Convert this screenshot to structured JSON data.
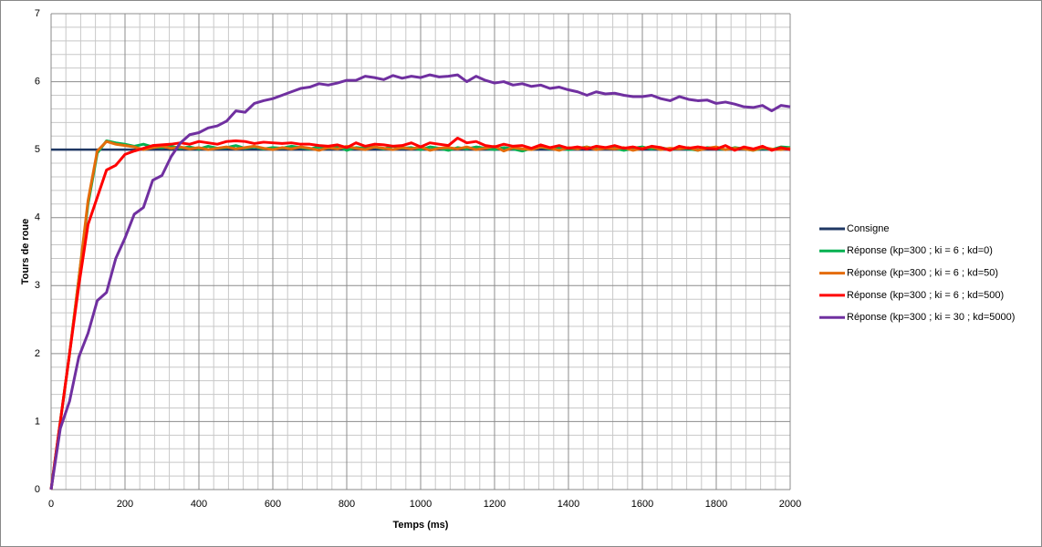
{
  "chart_data": {
    "type": "line",
    "x_label": "Temps (ms)",
    "y_label": "Tours de roue",
    "x": [
      0,
      25,
      50,
      75,
      100,
      125,
      150,
      175,
      200,
      225,
      250,
      275,
      300,
      325,
      350,
      375,
      400,
      425,
      450,
      475,
      500,
      525,
      550,
      575,
      600,
      625,
      650,
      675,
      700,
      725,
      750,
      775,
      800,
      825,
      850,
      875,
      900,
      925,
      950,
      975,
      1000,
      1025,
      1050,
      1075,
      1100,
      1125,
      1150,
      1175,
      1200,
      1225,
      1250,
      1275,
      1300,
      1325,
      1350,
      1375,
      1400,
      1425,
      1450,
      1475,
      1500,
      1525,
      1550,
      1575,
      1600,
      1625,
      1650,
      1675,
      1700,
      1725,
      1750,
      1775,
      1800,
      1825,
      1850,
      1875,
      1900,
      1925,
      1950,
      1975,
      2000
    ],
    "series": [
      {
        "name": "Consigne",
        "color": "#1f3864",
        "values": [
          5,
          5,
          5,
          5,
          5,
          5,
          5,
          5,
          5,
          5,
          5,
          5,
          5,
          5,
          5,
          5,
          5,
          5,
          5,
          5,
          5,
          5,
          5,
          5,
          5,
          5,
          5,
          5,
          5,
          5,
          5,
          5,
          5,
          5,
          5,
          5,
          5,
          5,
          5,
          5,
          5,
          5,
          5,
          5,
          5,
          5,
          5,
          5,
          5,
          5,
          5,
          5,
          5,
          5,
          5,
          5,
          5,
          5,
          5,
          5,
          5,
          5,
          5,
          5,
          5,
          5,
          5,
          5,
          5,
          5,
          5,
          5,
          5,
          5,
          5,
          5,
          5,
          5,
          5,
          5,
          5
        ]
      },
      {
        "name": "Réponse (kp=300 ; ki = 6 ; kd=0)",
        "color": "#00b050",
        "values": [
          0,
          1.0,
          2.0,
          3.1,
          4.2,
          4.95,
          5.13,
          5.1,
          5.08,
          5.05,
          5.08,
          5.04,
          5.03,
          5.05,
          5.02,
          5.04,
          5.01,
          5.05,
          5.02,
          5.03,
          5.06,
          5.02,
          5.04,
          5.01,
          5.03,
          5.02,
          5.05,
          5.03,
          5.01,
          5.04,
          5.02,
          5.05,
          4.99,
          5.03,
          5.02,
          5.04,
          5.01,
          5.05,
          5.02,
          5.03,
          5.0,
          5.04,
          5.02,
          4.99,
          5.03,
          5.01,
          5.04,
          5.02,
          5.0,
          5.03,
          5.01,
          4.98,
          5.02,
          5.04,
          5.01,
          5.03,
          5.0,
          5.02,
          5.04,
          5.01,
          5.03,
          5.02,
          4.99,
          5.02,
          5.04,
          5.01,
          5.03,
          5.0,
          5.02,
          5.01,
          4.99,
          5.03,
          5.02,
          5.0,
          5.03,
          5.01,
          4.99,
          5.02,
          5.0,
          5.04,
          5.03
        ]
      },
      {
        "name": "Réponse (kp=300 ; ki = 6 ; kd=50)",
        "color": "#e46c0a",
        "values": [
          0,
          1.0,
          2.0,
          3.1,
          4.25,
          4.98,
          5.12,
          5.08,
          5.06,
          5.04,
          5.0,
          5.03,
          5.05,
          5.02,
          5.04,
          5.01,
          5.03,
          5.0,
          5.02,
          5.04,
          5.01,
          5.03,
          5.05,
          5.02,
          5.0,
          5.03,
          5.01,
          5.04,
          5.02,
          4.99,
          5.03,
          5.01,
          5.05,
          5.02,
          5.0,
          5.04,
          5.02,
          5.0,
          5.03,
          5.01,
          5.04,
          4.99,
          5.02,
          5.03,
          5.01,
          5.04,
          5.0,
          5.02,
          5.05,
          4.98,
          5.03,
          5.01,
          5.0,
          5.04,
          5.02,
          4.99,
          5.03,
          5.01,
          5.04,
          5.0,
          5.02,
          5.01,
          5.03,
          4.99,
          5.02,
          5.04,
          5.0,
          5.02,
          5.01,
          5.03,
          4.99,
          5.02,
          5.04,
          5.0,
          5.02,
          5.01,
          4.99,
          5.03,
          5.01,
          5.0,
          5.02
        ]
      },
      {
        "name": "Réponse (kp=300 ; ki = 6 ; kd=500)",
        "color": "#ff0000",
        "values": [
          0,
          1.0,
          2.0,
          3.0,
          3.9,
          4.3,
          4.7,
          4.77,
          4.93,
          4.98,
          5.02,
          5.06,
          5.07,
          5.08,
          5.1,
          5.08,
          5.12,
          5.1,
          5.08,
          5.12,
          5.13,
          5.12,
          5.09,
          5.11,
          5.1,
          5.09,
          5.1,
          5.08,
          5.08,
          5.06,
          5.05,
          5.07,
          5.03,
          5.1,
          5.05,
          5.08,
          5.07,
          5.05,
          5.06,
          5.1,
          5.04,
          5.1,
          5.08,
          5.06,
          5.17,
          5.1,
          5.12,
          5.06,
          5.04,
          5.08,
          5.05,
          5.06,
          5.02,
          5.07,
          5.03,
          5.06,
          5.02,
          5.04,
          5.01,
          5.05,
          5.03,
          5.06,
          5.02,
          5.04,
          5.01,
          5.05,
          5.03,
          4.99,
          5.05,
          5.02,
          5.04,
          5.02,
          5.01,
          5.06,
          4.99,
          5.04,
          5.01,
          5.05,
          4.99,
          5.03,
          5.0
        ]
      },
      {
        "name": "Réponse (kp=300 ; ki = 30 ; kd=5000)",
        "color": "#7030a0",
        "values": [
          0,
          0.9,
          1.3,
          1.95,
          2.3,
          2.78,
          2.9,
          3.4,
          3.7,
          4.05,
          4.15,
          4.55,
          4.62,
          4.9,
          5.1,
          5.22,
          5.25,
          5.32,
          5.35,
          5.42,
          5.57,
          5.55,
          5.68,
          5.72,
          5.75,
          5.8,
          5.85,
          5.9,
          5.92,
          5.97,
          5.95,
          5.98,
          6.02,
          6.02,
          6.08,
          6.06,
          6.03,
          6.09,
          6.05,
          6.08,
          6.06,
          6.1,
          6.07,
          6.08,
          6.1,
          6.0,
          6.08,
          6.02,
          5.98,
          6.0,
          5.95,
          5.97,
          5.93,
          5.95,
          5.9,
          5.92,
          5.88,
          5.85,
          5.8,
          5.85,
          5.82,
          5.83,
          5.8,
          5.78,
          5.78,
          5.8,
          5.75,
          5.72,
          5.78,
          5.74,
          5.72,
          5.73,
          5.68,
          5.7,
          5.67,
          5.63,
          5.62,
          5.65,
          5.57,
          5.65,
          5.63
        ]
      }
    ],
    "xlim": [
      0,
      2000
    ],
    "xticks": [
      0,
      200,
      400,
      600,
      800,
      1000,
      1200,
      1400,
      1600,
      1800,
      2000
    ],
    "ylim": [
      0,
      7
    ],
    "yticks": [
      0,
      1,
      2,
      3,
      4,
      5,
      6,
      7
    ],
    "grid": true,
    "legend": "right"
  }
}
